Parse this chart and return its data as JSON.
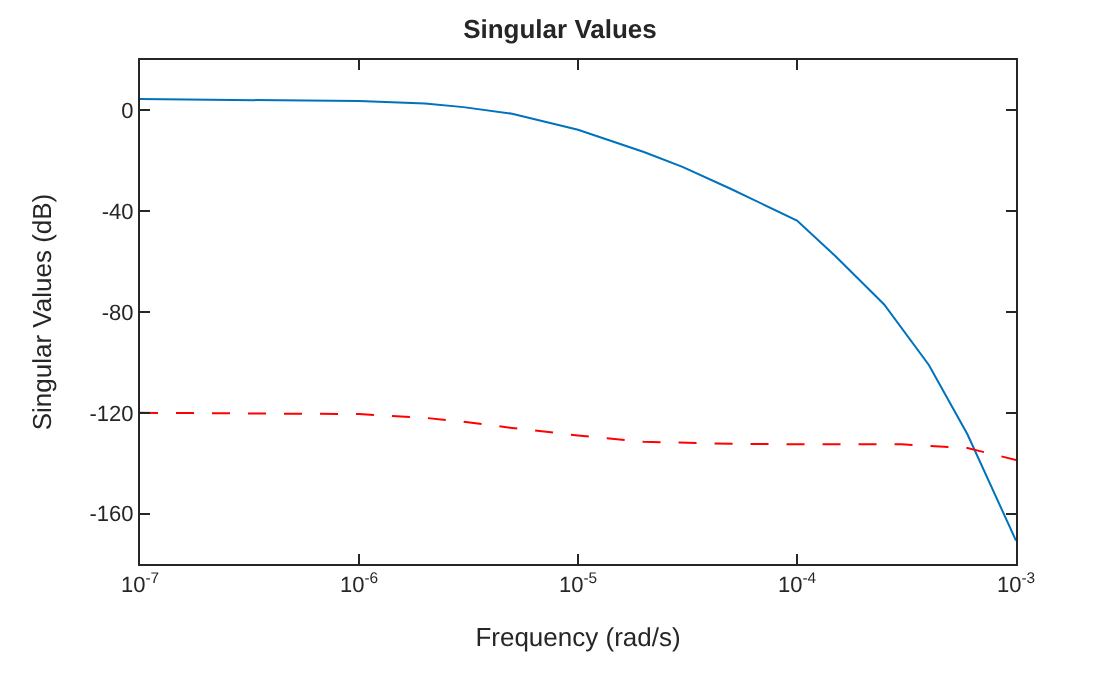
{
  "chart_data": {
    "type": "line",
    "title": "Singular Values",
    "xlabel": "Frequency (rad/s)",
    "ylabel": "Singular Values (dB)",
    "log": "x",
    "xlim": [
      1e-07,
      0.001
    ],
    "ylim": [
      -180,
      20
    ],
    "xticks": [
      {
        "value": 1e-07,
        "label": "10$^{-7}$"
      },
      {
        "value": 1e-06,
        "label": "10$^{-6}$"
      },
      {
        "value": 1e-05,
        "label": "10$^{-5}$"
      },
      {
        "value": 0.0001,
        "label": "10$^{-4}$"
      },
      {
        "value": 0.001,
        "label": "10$^{-3}$"
      }
    ],
    "yticks": [
      -160,
      -120,
      -80,
      -40,
      0
    ],
    "series": [
      {
        "color": "#0072bd",
        "line_style": "solid",
        "x": [
          1e-07,
          1e-06,
          2e-06,
          3e-06,
          5e-06,
          1e-05,
          2e-05,
          3e-05,
          5e-05,
          0.0001,
          0.00015,
          0.00025,
          0.0004,
          0.0006,
          0.001
        ],
        "values": [
          4.5,
          3.7,
          2.7,
          1.3,
          -1.3,
          -7.7,
          -16.5,
          -22.4,
          -31.2,
          -43.7,
          -57.9,
          -77,
          -101,
          -128.5,
          -170.7
        ]
      },
      {
        "color": "#ff0000",
        "line_style": "dashed",
        "x": [
          1e-07,
          1e-06,
          2e-06,
          3e-06,
          5e-06,
          1e-05,
          2e-05,
          5e-05,
          0.0001,
          0.0003,
          0.0006,
          0.001
        ],
        "values": [
          -120,
          -120.5,
          -122,
          -123.5,
          -126,
          -129,
          -131.5,
          -132.3,
          -132.5,
          -132.5,
          -134,
          -138.7
        ]
      }
    ]
  }
}
